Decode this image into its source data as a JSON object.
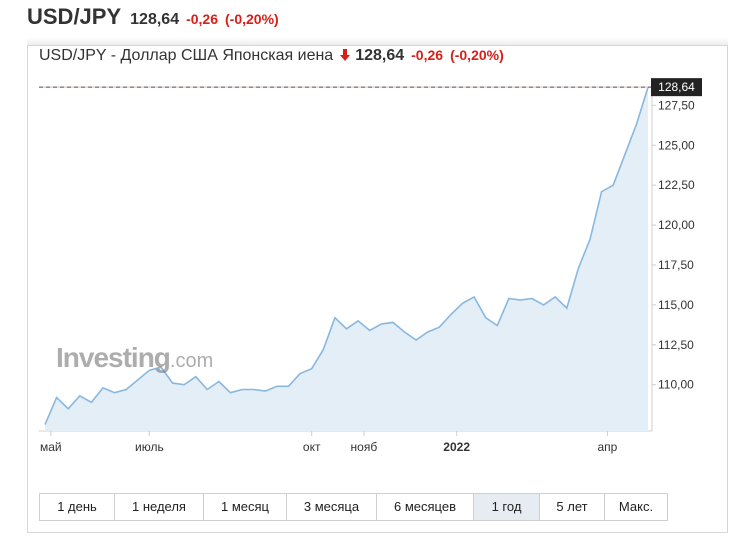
{
  "header": {
    "symbol": "USD/JPY",
    "price": "128,64",
    "change": "-0,26",
    "change_pct": "(-0,20%)"
  },
  "chart_header": {
    "title": "USD/JPY - Доллар США Японская иена",
    "direction_icon": "arrow-down-icon",
    "price": "128,64",
    "change": "-0,26",
    "change_pct": "(-0,20%)"
  },
  "watermark": {
    "brand": "Investing",
    "suffix": ".com"
  },
  "colors": {
    "line": "#88b8e0",
    "area": "#e4eef7",
    "negative": "#d91e18",
    "last_price_label_bg": "#222222",
    "last_price_line": "#c0392b"
  },
  "range_buttons": [
    {
      "label": "1 день",
      "active": false
    },
    {
      "label": "1 неделя",
      "active": false
    },
    {
      "label": "1 месяц",
      "active": false
    },
    {
      "label": "3 месяца",
      "active": false
    },
    {
      "label": "6 месяцев",
      "active": false
    },
    {
      "label": "1 год",
      "active": true
    },
    {
      "label": "5 лет",
      "active": false
    },
    {
      "label": "Макс.",
      "active": false
    }
  ],
  "chart_data": {
    "type": "area",
    "title": "USD/JPY - Доллар США Японская иена",
    "x_tick_labels": [
      {
        "label": "май",
        "week": 0.5,
        "bold": false
      },
      {
        "label": "июль",
        "week": 9.0,
        "bold": false
      },
      {
        "label": "окт",
        "week": 23.0,
        "bold": false
      },
      {
        "label": "нояб",
        "week": 27.5,
        "bold": false
      },
      {
        "label": "2022",
        "week": 35.5,
        "bold": true
      },
      {
        "label": "апр",
        "week": 48.5,
        "bold": false
      }
    ],
    "y_ticks": [
      "110,00",
      "112,50",
      "115,00",
      "117,50",
      "120,00",
      "122,50",
      "125,00",
      "127,50"
    ],
    "y_tick_values": [
      110,
      112.5,
      115,
      117.5,
      120,
      122.5,
      125,
      127.5
    ],
    "ylim": [
      107.1,
      128.9
    ],
    "last_price": 128.64,
    "last_price_label": "128,64",
    "grid": false,
    "series": [
      {
        "values": [
          107.5,
          109.2,
          108.5,
          109.3,
          108.9,
          109.8,
          109.5,
          109.7,
          110.3,
          110.9,
          111.1,
          110.1,
          110.0,
          110.5,
          109.7,
          110.2,
          109.5,
          109.7,
          109.7,
          109.6,
          109.9,
          109.9,
          110.7,
          111.0,
          112.2,
          114.2,
          113.5,
          114.0,
          113.4,
          113.8,
          113.9,
          113.3,
          112.8,
          113.3,
          113.6,
          114.4,
          115.1,
          115.5,
          114.2,
          113.7,
          115.4,
          115.3,
          115.4,
          115.0,
          115.5,
          114.8,
          117.3,
          119.1,
          122.1,
          122.5,
          124.4,
          126.3,
          128.64
        ]
      }
    ]
  }
}
